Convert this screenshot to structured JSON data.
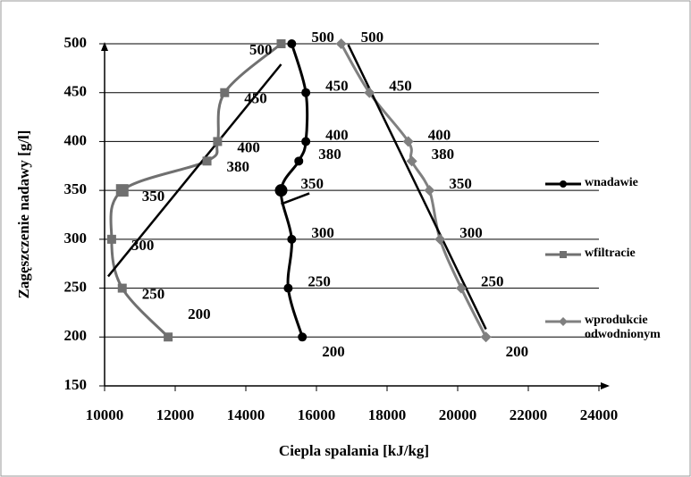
{
  "chart_data": {
    "type": "line",
    "xlabel": "Ciepla spalania [kJ/kg]",
    "ylabel": "Zagęszczenie nadawy [g/l]",
    "xlim": [
      10000,
      24000
    ],
    "xticks": [
      10000,
      12000,
      14000,
      16000,
      18000,
      20000,
      22000,
      24000
    ],
    "ylim": [
      150,
      500
    ],
    "yticks": [
      150,
      200,
      250,
      300,
      350,
      400,
      450,
      500
    ],
    "grid": true,
    "legend": "right",
    "series": [
      {
        "name": "wnadawie",
        "color": "#000000",
        "marker": "circle",
        "x": [
          15600,
          15200,
          15300,
          15000,
          15500,
          15700,
          15700,
          15300
        ],
        "values": [
          200,
          250,
          300,
          350,
          380,
          400,
          450,
          500
        ],
        "trend": {
          "x": [
            15000,
            15800
          ],
          "y": [
            336,
            347
          ]
        }
      },
      {
        "name": "wfiltracie",
        "color": "#707070",
        "marker": "square",
        "x": [
          11800,
          10500,
          10200,
          10500,
          12900,
          13200,
          13400,
          15000
        ],
        "values": [
          200,
          250,
          300,
          350,
          380,
          400,
          450,
          500
        ],
        "trend": {
          "x": [
            10100,
            15000
          ],
          "y": [
            262,
            479
          ]
        }
      },
      {
        "name": "wprodukcie odwodnionym",
        "color": "#808080",
        "marker": "diamond",
        "x": [
          20800,
          20100,
          19500,
          19200,
          18700,
          18600,
          17500,
          16700
        ],
        "values": [
          200,
          250,
          300,
          350,
          380,
          400,
          450,
          500
        ],
        "trend": {
          "x": [
            16900,
            20800
          ],
          "y": [
            499,
            208
          ]
        }
      }
    ]
  }
}
